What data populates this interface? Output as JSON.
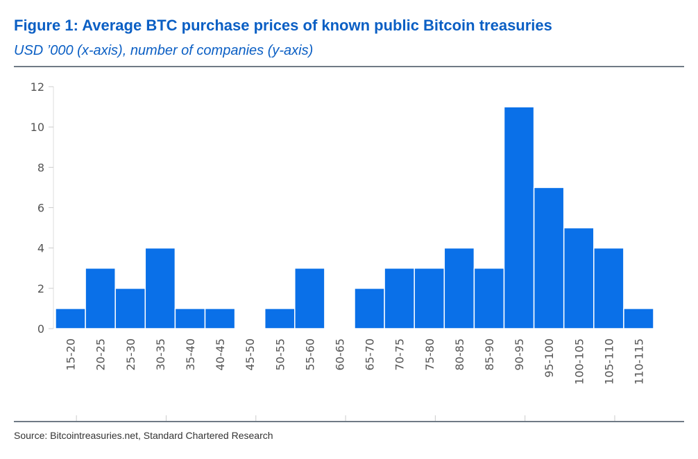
{
  "header": {
    "title": "Figure 1: Average BTC purchase prices of known public Bitcoin treasuries",
    "subtitle": "USD ’000 (x-axis), number of companies (y-axis)"
  },
  "footer": {
    "source": "Source: Bitcointreasuries.net, Standard Chartered Research"
  },
  "chart_data": {
    "type": "bar",
    "title": "Figure 1: Average BTC purchase prices of known public Bitcoin treasuries",
    "subtitle": "USD ’000 (x-axis), number of companies (y-axis)",
    "categories": [
      "15-20",
      "20-25",
      "25-30",
      "30-35",
      "35-40",
      "40-45",
      "45-50",
      "50-55",
      "55-60",
      "60-65",
      "65-70",
      "70-75",
      "75-80",
      "80-85",
      "85-90",
      "90-95",
      "95-100",
      "100-105",
      "105-110",
      "110-115"
    ],
    "values": [
      1,
      3,
      2,
      4,
      1,
      1,
      0,
      1,
      3,
      0,
      2,
      3,
      3,
      4,
      3,
      11,
      7,
      5,
      4,
      1
    ],
    "ylim": [
      0,
      12
    ],
    "yticks": [
      0,
      2,
      4,
      6,
      8,
      10,
      12
    ],
    "grid": false,
    "bar_color": "#0a70e8"
  }
}
